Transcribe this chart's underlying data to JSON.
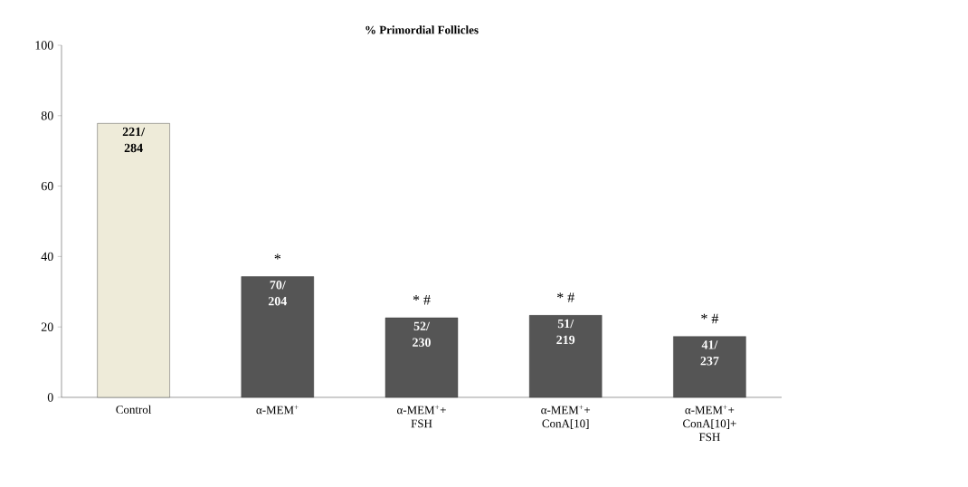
{
  "chart_data": {
    "type": "bar",
    "title": "% Primordial Follicles",
    "categories": [
      "Control",
      "α-MEM$^{+}$",
      "α-MEM$^{+}$+ FSH",
      "α-MEM$^{+}$+ ConA[10]",
      "α-MEM$^{+}$+ ConA[10]+ FSH"
    ],
    "values": [
      77.8,
      34.3,
      22.6,
      23.3,
      17.3
    ],
    "colors": [
      "#eeebd9",
      "#555555",
      "#555555",
      "#555555",
      "#555555"
    ],
    "value_labels": [
      "221/ 284",
      "70/ 204",
      "52/ 230",
      "51/ 219",
      "41/ 237"
    ],
    "annotations": [
      "*",
      "* #",
      "* #",
      "* #"
    ],
    "ylim": [
      0,
      100
    ],
    "yticks": [
      0,
      20,
      40,
      60,
      80,
      100
    ],
    "grid": false
  }
}
